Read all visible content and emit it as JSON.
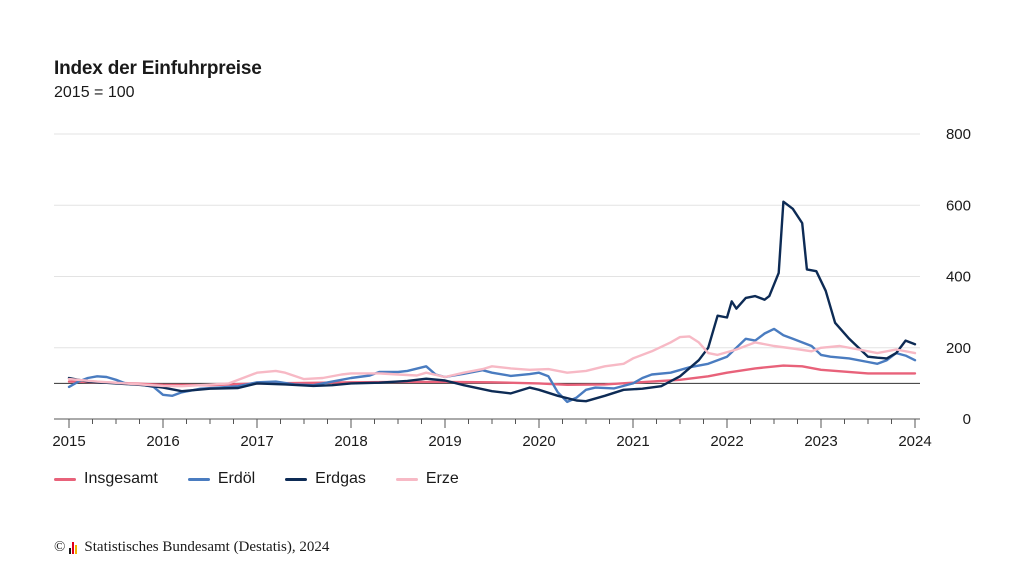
{
  "chart_data": {
    "type": "line",
    "title": "Index der Einfuhrpreise",
    "subtitle": "2015 = 100",
    "xlabel": "",
    "ylabel": "",
    "x_ticks": [
      "2015",
      "2016",
      "2017",
      "2018",
      "2019",
      "2020",
      "2021",
      "2022",
      "2023",
      "2024"
    ],
    "y_ticks": [
      0,
      200,
      400,
      600,
      800
    ],
    "xlim": [
      2015.0,
      2024.0
    ],
    "ylim": [
      0,
      800
    ],
    "reference_line": 100,
    "grid": "horizontal",
    "legend_position": "bottom-left",
    "series": [
      {
        "name": "Insgesamt",
        "color": "#e8627a",
        "points": [
          [
            2015.0,
            105
          ],
          [
            2015.5,
            102
          ],
          [
            2016.0,
            96
          ],
          [
            2016.5,
            95
          ],
          [
            2017.0,
            100
          ],
          [
            2017.5,
            101
          ],
          [
            2018.0,
            103
          ],
          [
            2018.5,
            104
          ],
          [
            2019.0,
            104
          ],
          [
            2019.5,
            103
          ],
          [
            2020.0,
            100
          ],
          [
            2020.3,
            96
          ],
          [
            2020.7,
            97
          ],
          [
            2021.0,
            102
          ],
          [
            2021.5,
            110
          ],
          [
            2021.8,
            120
          ],
          [
            2022.0,
            130
          ],
          [
            2022.3,
            142
          ],
          [
            2022.6,
            150
          ],
          [
            2022.8,
            148
          ],
          [
            2023.0,
            138
          ],
          [
            2023.5,
            128
          ],
          [
            2024.0,
            128
          ]
        ]
      },
      {
        "name": "Erdöl",
        "color": "#4a7cc0",
        "points": [
          [
            2015.0,
            90
          ],
          [
            2015.1,
            105
          ],
          [
            2015.2,
            115
          ],
          [
            2015.3,
            120
          ],
          [
            2015.4,
            118
          ],
          [
            2015.5,
            110
          ],
          [
            2015.6,
            100
          ],
          [
            2015.8,
            95
          ],
          [
            2015.9,
            90
          ],
          [
            2016.0,
            68
          ],
          [
            2016.1,
            65
          ],
          [
            2016.2,
            75
          ],
          [
            2016.4,
            85
          ],
          [
            2016.6,
            88
          ],
          [
            2016.8,
            92
          ],
          [
            2017.0,
            103
          ],
          [
            2017.2,
            105
          ],
          [
            2017.4,
            97
          ],
          [
            2017.6,
            95
          ],
          [
            2017.8,
            105
          ],
          [
            2018.0,
            115
          ],
          [
            2018.2,
            122
          ],
          [
            2018.3,
            132
          ],
          [
            2018.5,
            132
          ],
          [
            2018.6,
            135
          ],
          [
            2018.8,
            148
          ],
          [
            2018.9,
            125
          ],
          [
            2019.0,
            118
          ],
          [
            2019.2,
            127
          ],
          [
            2019.4,
            137
          ],
          [
            2019.5,
            130
          ],
          [
            2019.7,
            121
          ],
          [
            2019.9,
            126
          ],
          [
            2020.0,
            130
          ],
          [
            2020.1,
            120
          ],
          [
            2020.2,
            75
          ],
          [
            2020.3,
            48
          ],
          [
            2020.4,
            60
          ],
          [
            2020.5,
            82
          ],
          [
            2020.6,
            88
          ],
          [
            2020.8,
            86
          ],
          [
            2021.0,
            100
          ],
          [
            2021.1,
            115
          ],
          [
            2021.2,
            125
          ],
          [
            2021.4,
            130
          ],
          [
            2021.6,
            145
          ],
          [
            2021.8,
            155
          ],
          [
            2022.0,
            175
          ],
          [
            2022.1,
            200
          ],
          [
            2022.2,
            225
          ],
          [
            2022.3,
            220
          ],
          [
            2022.4,
            240
          ],
          [
            2022.5,
            253
          ],
          [
            2022.6,
            235
          ],
          [
            2022.7,
            225
          ],
          [
            2022.8,
            215
          ],
          [
            2022.9,
            205
          ],
          [
            2023.0,
            180
          ],
          [
            2023.1,
            175
          ],
          [
            2023.3,
            170
          ],
          [
            2023.5,
            160
          ],
          [
            2023.6,
            155
          ],
          [
            2023.7,
            165
          ],
          [
            2023.8,
            185
          ],
          [
            2023.9,
            178
          ],
          [
            2024.0,
            165
          ]
        ]
      },
      {
        "name": "Erdgas",
        "color": "#0d2b55",
        "points": [
          [
            2015.0,
            115
          ],
          [
            2015.2,
            105
          ],
          [
            2015.5,
            100
          ],
          [
            2015.8,
            95
          ],
          [
            2016.0,
            88
          ],
          [
            2016.2,
            78
          ],
          [
            2016.5,
            85
          ],
          [
            2016.8,
            87
          ],
          [
            2017.0,
            100
          ],
          [
            2017.3,
            97
          ],
          [
            2017.6,
            93
          ],
          [
            2017.8,
            95
          ],
          [
            2018.0,
            100
          ],
          [
            2018.3,
            102
          ],
          [
            2018.6,
            107
          ],
          [
            2018.8,
            113
          ],
          [
            2019.0,
            108
          ],
          [
            2019.2,
            95
          ],
          [
            2019.5,
            78
          ],
          [
            2019.7,
            72
          ],
          [
            2019.9,
            88
          ],
          [
            2020.0,
            82
          ],
          [
            2020.2,
            65
          ],
          [
            2020.4,
            52
          ],
          [
            2020.5,
            50
          ],
          [
            2020.7,
            65
          ],
          [
            2020.9,
            82
          ],
          [
            2021.1,
            85
          ],
          [
            2021.3,
            92
          ],
          [
            2021.5,
            120
          ],
          [
            2021.7,
            165
          ],
          [
            2021.8,
            200
          ],
          [
            2021.9,
            290
          ],
          [
            2022.0,
            285
          ],
          [
            2022.05,
            330
          ],
          [
            2022.1,
            310
          ],
          [
            2022.2,
            340
          ],
          [
            2022.3,
            345
          ],
          [
            2022.4,
            335
          ],
          [
            2022.45,
            345
          ],
          [
            2022.55,
            410
          ],
          [
            2022.6,
            610
          ],
          [
            2022.7,
            590
          ],
          [
            2022.8,
            550
          ],
          [
            2022.85,
            420
          ],
          [
            2022.95,
            415
          ],
          [
            2023.05,
            360
          ],
          [
            2023.15,
            270
          ],
          [
            2023.3,
            225
          ],
          [
            2023.4,
            200
          ],
          [
            2023.5,
            175
          ],
          [
            2023.6,
            172
          ],
          [
            2023.7,
            170
          ],
          [
            2023.8,
            185
          ],
          [
            2023.9,
            220
          ],
          [
            2024.0,
            210
          ]
        ]
      },
      {
        "name": "Erze",
        "color": "#f7b9c5",
        "points": [
          [
            2015.0,
            112
          ],
          [
            2015.3,
            105
          ],
          [
            2015.6,
            100
          ],
          [
            2016.0,
            93
          ],
          [
            2016.2,
            92
          ],
          [
            2016.4,
            95
          ],
          [
            2016.7,
            100
          ],
          [
            2016.9,
            120
          ],
          [
            2017.0,
            130
          ],
          [
            2017.2,
            135
          ],
          [
            2017.3,
            130
          ],
          [
            2017.5,
            112
          ],
          [
            2017.7,
            115
          ],
          [
            2017.9,
            125
          ],
          [
            2018.0,
            128
          ],
          [
            2018.3,
            128
          ],
          [
            2018.5,
            125
          ],
          [
            2018.7,
            122
          ],
          [
            2018.8,
            130
          ],
          [
            2019.0,
            118
          ],
          [
            2019.2,
            130
          ],
          [
            2019.4,
            140
          ],
          [
            2019.5,
            148
          ],
          [
            2019.7,
            142
          ],
          [
            2019.9,
            138
          ],
          [
            2020.1,
            140
          ],
          [
            2020.3,
            130
          ],
          [
            2020.5,
            135
          ],
          [
            2020.7,
            148
          ],
          [
            2020.9,
            155
          ],
          [
            2021.0,
            170
          ],
          [
            2021.2,
            190
          ],
          [
            2021.4,
            215
          ],
          [
            2021.5,
            230
          ],
          [
            2021.6,
            232
          ],
          [
            2021.7,
            215
          ],
          [
            2021.8,
            185
          ],
          [
            2021.9,
            180
          ],
          [
            2022.1,
            195
          ],
          [
            2022.3,
            215
          ],
          [
            2022.5,
            205
          ],
          [
            2022.7,
            198
          ],
          [
            2022.9,
            190
          ],
          [
            2023.0,
            200
          ],
          [
            2023.2,
            205
          ],
          [
            2023.4,
            195
          ],
          [
            2023.6,
            185
          ],
          [
            2023.8,
            195
          ],
          [
            2024.0,
            185
          ]
        ]
      }
    ]
  },
  "footer": {
    "copyright": "©",
    "source": "Statistisches Bundesamt (Destatis), 2024"
  }
}
